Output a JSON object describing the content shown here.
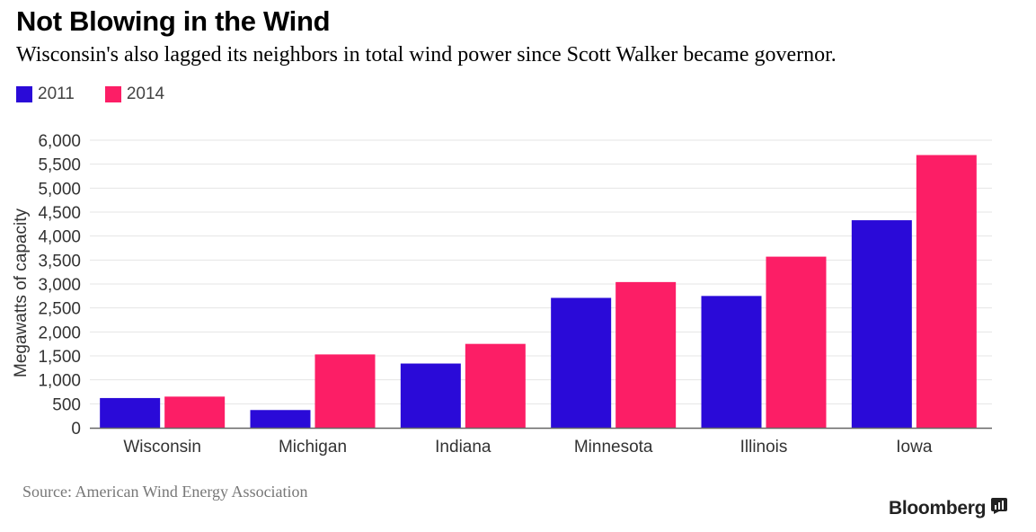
{
  "title": "Not Blowing in the Wind",
  "subtitle": "Wisconsin's also lagged its neighbors in total wind power since Scott Walker became governor.",
  "source": "Source: American Wind Energy Association",
  "brand": "Bloomberg",
  "brand_icon": "bloomberg-terminal-icon",
  "colors": {
    "series_2011": "#2A0AD8",
    "series_2014": "#FC1E66",
    "grid": "#e4e4e4",
    "axis": "#666666"
  },
  "chart_data": {
    "type": "bar",
    "title": "Not Blowing in the Wind",
    "xlabel": "",
    "ylabel": "Megawatts of capacity",
    "ylim": [
      0,
      6000
    ],
    "yticks": [
      0,
      500,
      1000,
      1500,
      2000,
      2500,
      3000,
      3500,
      4000,
      4500,
      5000,
      5500,
      6000
    ],
    "ytick_labels": [
      "0",
      "500",
      "1,000",
      "1,500",
      "2,000",
      "2,500",
      "3,000",
      "3,500",
      "4,000",
      "4,500",
      "5,000",
      "5,500",
      "6,000"
    ],
    "categories": [
      "Wisconsin",
      "Michigan",
      "Indiana",
      "Minnesota",
      "Illinois",
      "Iowa"
    ],
    "series": [
      {
        "name": "2011",
        "values": [
          620,
          370,
          1340,
          2710,
          2750,
          4330
        ]
      },
      {
        "name": "2014",
        "values": [
          650,
          1530,
          1750,
          3040,
          3570,
          5690
        ]
      }
    ],
    "grid": true,
    "legend": "top-left"
  }
}
